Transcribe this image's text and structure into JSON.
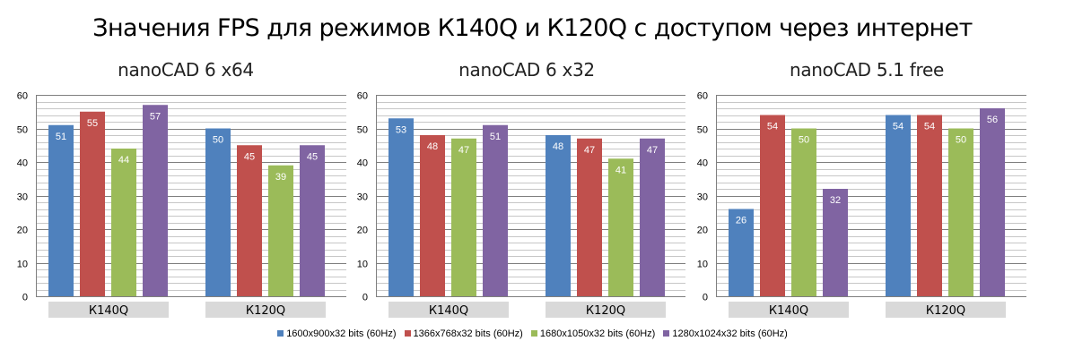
{
  "title": "Значения FPS для режимов К140Q и К120Q с доступом через интернет",
  "legend": [
    {
      "label": "1600x900x32 bits (60Hz)",
      "color": "#4F81BD"
    },
    {
      "label": "1366x768x32 bits (60Hz)",
      "color": "#C0504D"
    },
    {
      "label": "1680x1050x32 bits (60Hz)",
      "color": "#9BBB59"
    },
    {
      "label": "1280x1024x32 bits (60Hz)",
      "color": "#8064A2"
    }
  ],
  "chart_data": [
    {
      "type": "bar",
      "title": "nanoCAD 6 x64",
      "categories": [
        "К140Q",
        "К120Q"
      ],
      "ylim": [
        0,
        60
      ],
      "yticks": [
        0,
        10,
        20,
        30,
        40,
        50,
        60
      ],
      "grid": true,
      "legend_position": "bottom",
      "series": [
        {
          "name": "1600x900x32 bits (60Hz)",
          "values": [
            51,
            50
          ]
        },
        {
          "name": "1366x768x32 bits (60Hz)",
          "values": [
            55,
            45
          ]
        },
        {
          "name": "1680x1050x32 bits (60Hz)",
          "values": [
            44,
            39
          ]
        },
        {
          "name": "1280x1024x32 bits (60Hz)",
          "values": [
            57,
            45
          ]
        }
      ]
    },
    {
      "type": "bar",
      "title": "nanoCAD 6 x32",
      "categories": [
        "К140Q",
        "К120Q"
      ],
      "ylim": [
        0,
        60
      ],
      "yticks": [
        0,
        10,
        20,
        30,
        40,
        50,
        60
      ],
      "grid": true,
      "legend_position": "bottom",
      "series": [
        {
          "name": "1600x900x32 bits (60Hz)",
          "values": [
            53,
            48
          ]
        },
        {
          "name": "1366x768x32 bits (60Hz)",
          "values": [
            48,
            47
          ]
        },
        {
          "name": "1680x1050x32 bits (60Hz)",
          "values": [
            47,
            41
          ]
        },
        {
          "name": "1280x1024x32 bits (60Hz)",
          "values": [
            51,
            47
          ]
        }
      ]
    },
    {
      "type": "bar",
      "title": "nanoCAD 5.1 free",
      "categories": [
        "К140Q",
        "К120Q"
      ],
      "ylim": [
        0,
        60
      ],
      "yticks": [
        0,
        10,
        20,
        30,
        40,
        50,
        60
      ],
      "grid": true,
      "legend_position": "bottom",
      "series": [
        {
          "name": "1600x900x32 bits (60Hz)",
          "values": [
            26,
            54
          ]
        },
        {
          "name": "1366x768x32 bits (60Hz)",
          "values": [
            54,
            54
          ]
        },
        {
          "name": "1680x1050x32 bits (60Hz)",
          "values": [
            50,
            50
          ]
        },
        {
          "name": "1280x1024x32 bits (60Hz)",
          "values": [
            32,
            56
          ]
        }
      ]
    }
  ]
}
